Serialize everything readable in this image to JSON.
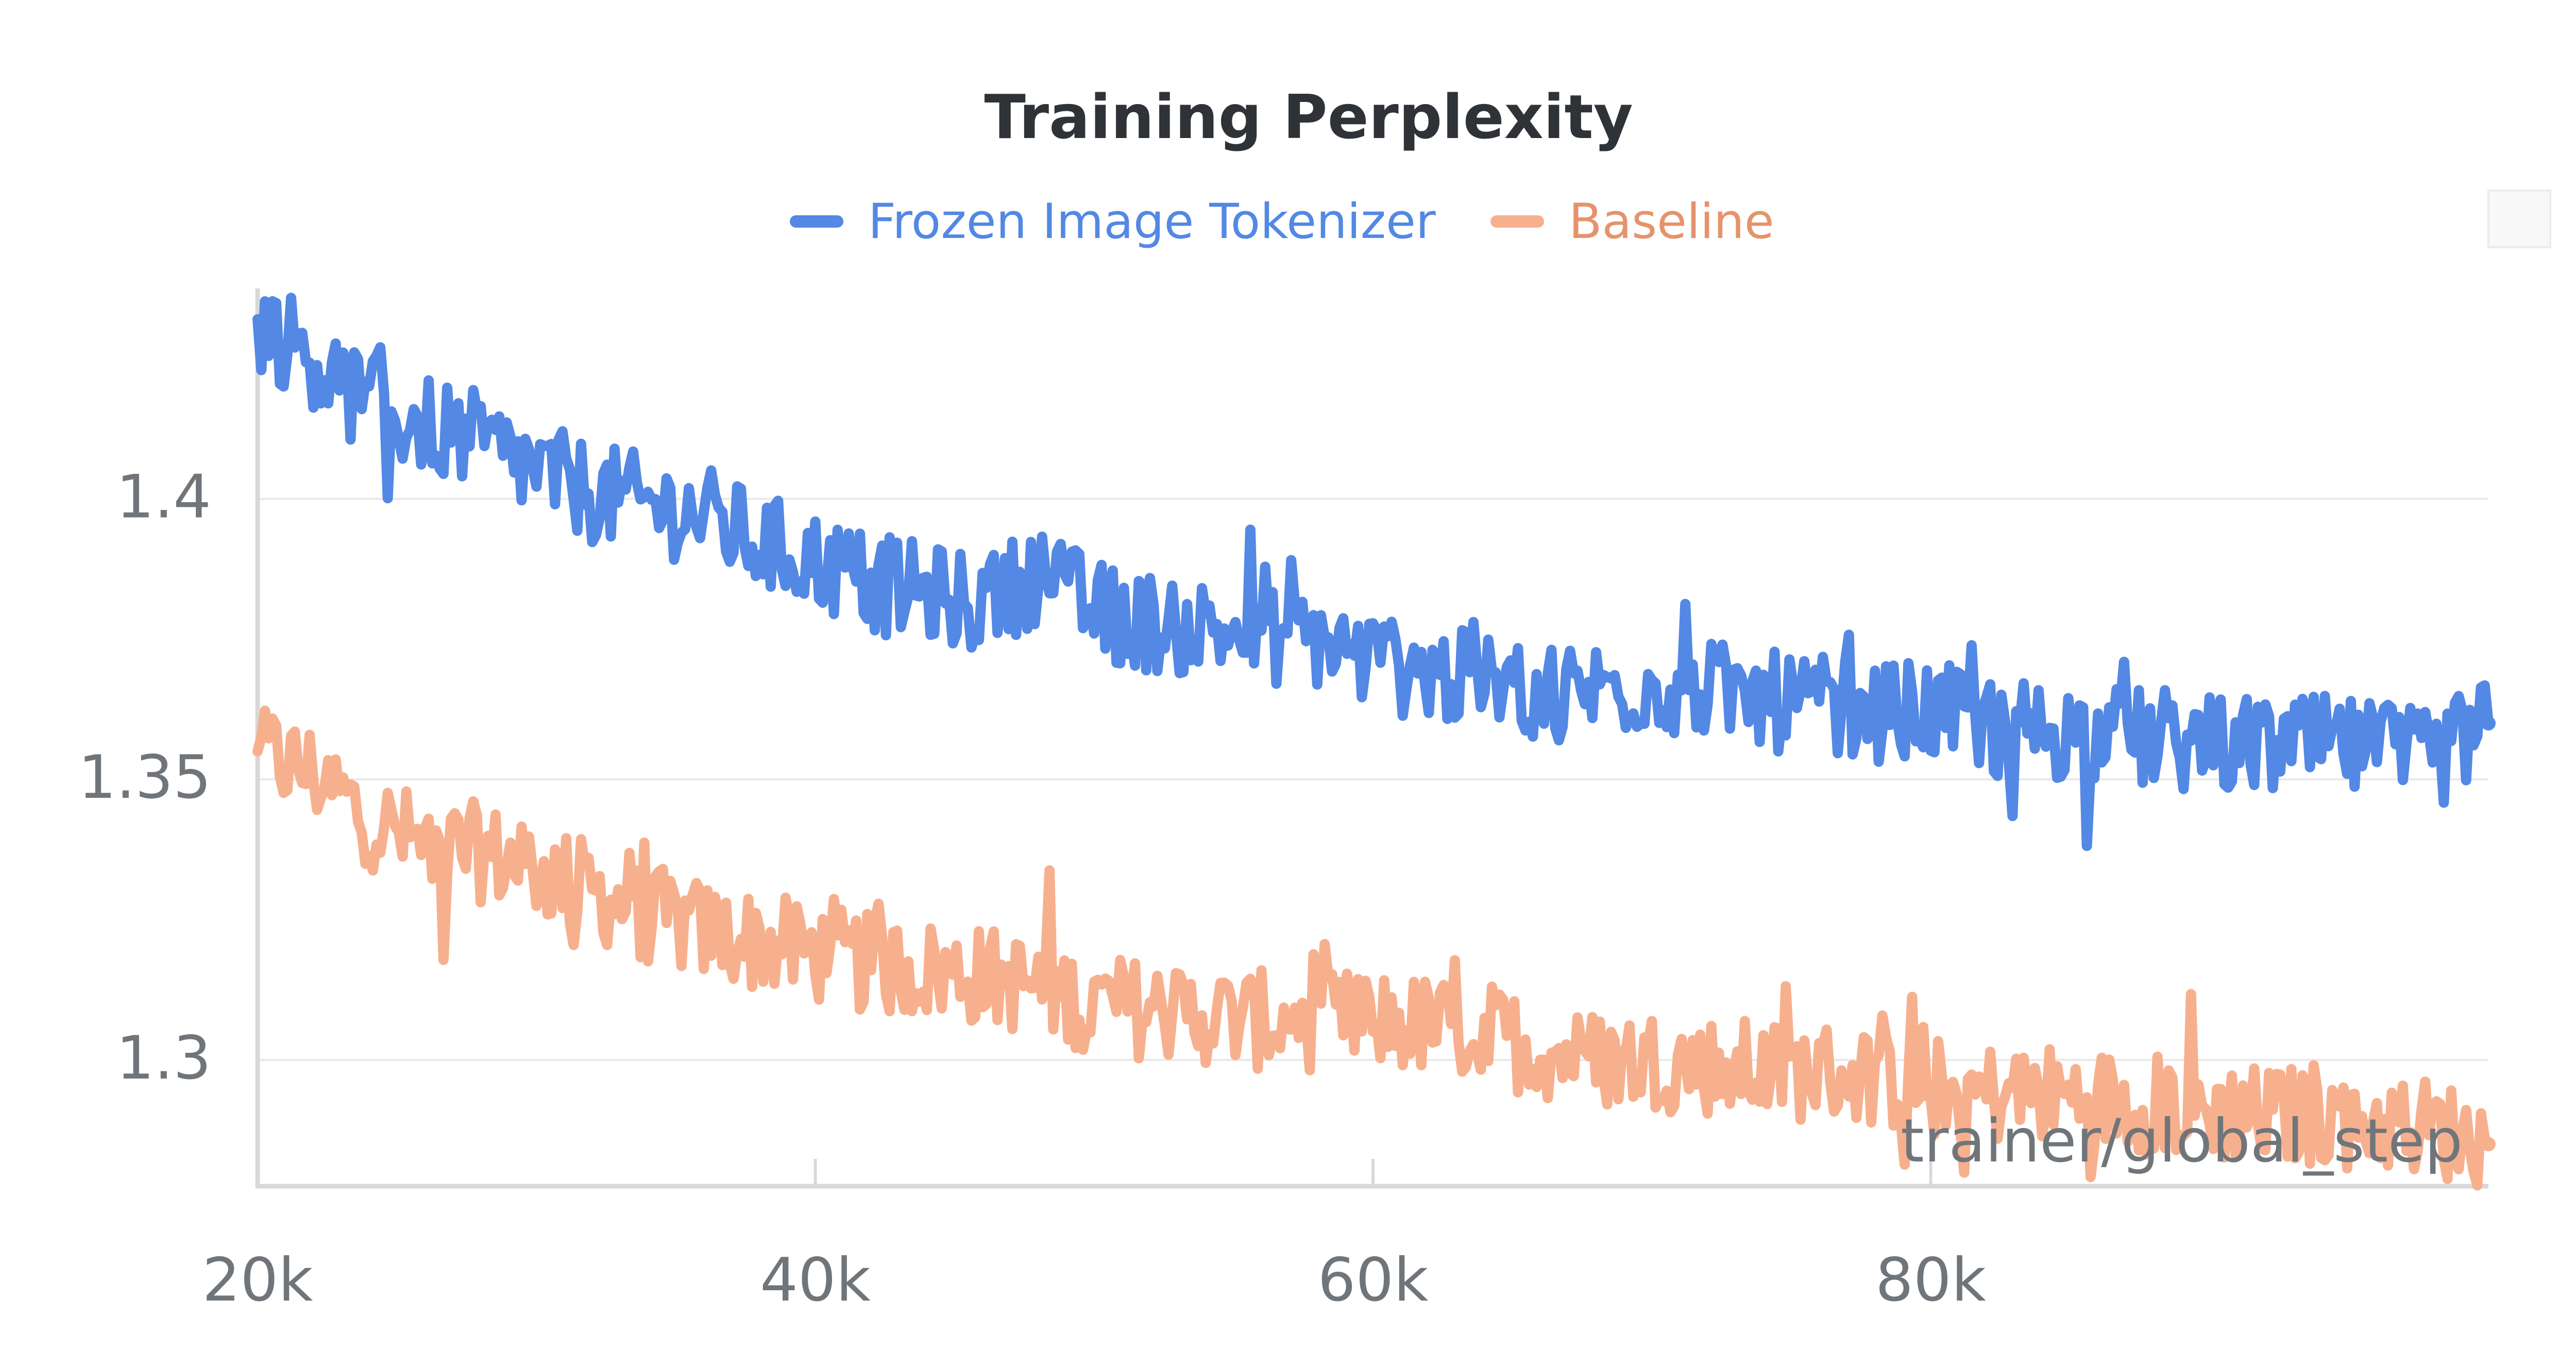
{
  "chart_data": {
    "type": "line",
    "title": "Training Perplexity",
    "xlabel": "trainer/global_step",
    "ylabel": "",
    "xlim": [
      20000,
      100000
    ],
    "ylim": [
      1.2775,
      1.4375
    ],
    "x_ticks": [
      {
        "value": 20000,
        "label": "20k"
      },
      {
        "value": 40000,
        "label": "40k"
      },
      {
        "value": 60000,
        "label": "60k"
      },
      {
        "value": 80000,
        "label": "80k"
      }
    ],
    "y_ticks": [
      {
        "value": 1.3,
        "label": "1.3"
      },
      {
        "value": 1.35,
        "label": "1.35"
      },
      {
        "value": 1.4,
        "label": "1.4"
      }
    ],
    "grid": true,
    "legend_position": "top-center",
    "series": [
      {
        "name": "Frozen Image Tokenizer",
        "color": "#5388e4",
        "x": [
          20000,
          22000,
          24000,
          26000,
          28000,
          30000,
          32000,
          34000,
          36000,
          38000,
          40000,
          42000,
          44000,
          46000,
          48000,
          50000,
          52000,
          54000,
          56000,
          58000,
          60000,
          62000,
          64000,
          66000,
          68000,
          70000,
          72000,
          74000,
          76000,
          78000,
          80000,
          82000,
          84000,
          86000,
          88000,
          90000,
          92000,
          94000,
          96000,
          98000,
          100000
        ],
        "values": [
          1.432,
          1.425,
          1.416,
          1.413,
          1.41,
          1.405,
          1.401,
          1.399,
          1.397,
          1.392,
          1.389,
          1.385,
          1.383,
          1.381,
          1.387,
          1.38,
          1.378,
          1.377,
          1.376,
          1.375,
          1.371,
          1.369,
          1.367,
          1.366,
          1.366,
          1.367,
          1.366,
          1.364,
          1.363,
          1.362,
          1.362,
          1.36,
          1.359,
          1.358,
          1.357,
          1.356,
          1.356,
          1.356,
          1.355,
          1.353,
          1.36
        ]
      },
      {
        "name": "Baseline",
        "color": "#f7b08d",
        "x": [
          20000,
          22000,
          24000,
          26000,
          28000,
          30000,
          32000,
          34000,
          36000,
          38000,
          40000,
          42000,
          44000,
          46000,
          48000,
          50000,
          52000,
          54000,
          56000,
          58000,
          60000,
          62000,
          64000,
          66000,
          68000,
          70000,
          72000,
          74000,
          76000,
          78000,
          80000,
          82000,
          84000,
          86000,
          88000,
          90000,
          92000,
          94000,
          96000,
          98000,
          100000
        ],
        "values": [
          1.355,
          1.351,
          1.343,
          1.338,
          1.337,
          1.334,
          1.33,
          1.326,
          1.323,
          1.321,
          1.319,
          1.317,
          1.316,
          1.315,
          1.313,
          1.31,
          1.309,
          1.308,
          1.307,
          1.307,
          1.307,
          1.306,
          1.305,
          1.302,
          1.3,
          1.3,
          1.299,
          1.298,
          1.298,
          1.297,
          1.295,
          1.294,
          1.294,
          1.293,
          1.292,
          1.291,
          1.29,
          1.29,
          1.289,
          1.288,
          1.285
        ]
      }
    ]
  }
}
